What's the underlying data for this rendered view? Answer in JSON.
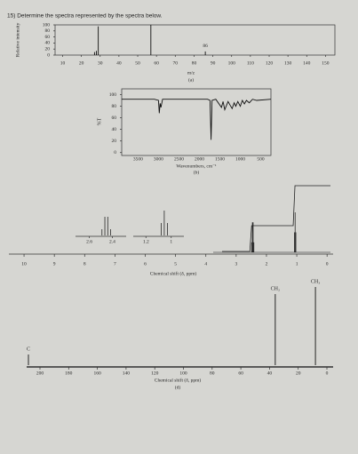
{
  "question": "15) Determine the spectra represented by the spectra below.",
  "chart_data": [
    {
      "type": "bar",
      "ylabel": "Relative intensity",
      "xlabel": "m/z",
      "caption": "(a)",
      "xlim": [
        6,
        155
      ],
      "xticks": [
        10,
        20,
        30,
        40,
        50,
        60,
        70,
        80,
        90,
        100,
        110,
        120,
        130,
        140,
        150
      ],
      "ylim": [
        0,
        100
      ],
      "yticks": [
        0,
        20,
        40,
        60,
        80,
        100
      ],
      "x": [
        27,
        28,
        29,
        57,
        86
      ],
      "values": [
        10,
        14,
        95,
        100,
        12
      ],
      "annotation": "86"
    },
    {
      "type": "line",
      "ylabel": "%T",
      "xlabel": "Wavenumbers, cm⁻¹",
      "caption": "(b)",
      "xlim": [
        3900,
        250
      ],
      "xticks": [
        3500,
        3000,
        2500,
        2000,
        1500,
        1000,
        500
      ],
      "ylim": [
        -5,
        110
      ],
      "yticks": [
        0,
        20,
        40,
        60,
        80,
        100
      ],
      "x": [
        3900,
        3100,
        3000,
        2980,
        2960,
        2940,
        2900,
        1800,
        1740,
        1715,
        1690,
        1600,
        1460,
        1420,
        1380,
        1300,
        1250,
        1200,
        1150,
        1110,
        1060,
        1000,
        950,
        900,
        850,
        780,
        700,
        600,
        250
      ],
      "values": [
        92,
        92,
        90,
        68,
        85,
        78,
        92,
        92,
        90,
        22,
        90,
        92,
        78,
        88,
        74,
        88,
        82,
        76,
        86,
        80,
        88,
        80,
        90,
        84,
        90,
        86,
        92,
        90,
        92
      ]
    },
    {
      "type": "nmr",
      "xlabel": "Chemical shift (δ, ppm)",
      "xlim": [
        10.5,
        -0.2
      ],
      "xticks": [
        10,
        9,
        8,
        7,
        6,
        5,
        4,
        3,
        2,
        1,
        0
      ],
      "x": [
        2.49,
        2.465,
        2.44,
        2.415,
        1.08,
        1.055,
        1.03
      ],
      "values": [
        25,
        75,
        75,
        25,
        50,
        100,
        50
      ],
      "integrals": [
        2,
        3
      ],
      "insets": [
        {
          "xlim": [
            2.72,
            2.28
          ],
          "xticks": [
            2.6,
            2.4
          ]
        },
        {
          "xlim": [
            1.3,
            0.9
          ],
          "xticks": [
            1.2,
            1.0
          ]
        }
      ]
    },
    {
      "type": "stick",
      "xlabel": "Chemical shift (δ, ppm)",
      "caption": "(d)",
      "xlim": [
        209,
        -4
      ],
      "xticks": [
        200,
        180,
        160,
        140,
        120,
        100,
        80,
        60,
        40,
        20,
        0
      ],
      "x": [
        211,
        36,
        8
      ],
      "values": [
        15,
        100,
        110
      ],
      "labels": [
        "C",
        "CH₂",
        "CH₃"
      ]
    }
  ]
}
